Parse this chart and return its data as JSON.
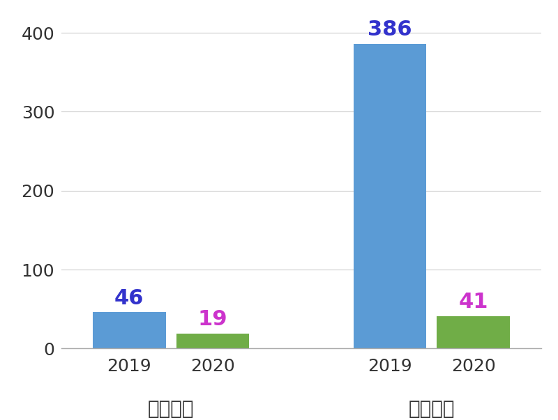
{
  "groups": [
    {
      "label": "マラリア",
      "bars": [
        {
          "year": "2019",
          "value": 46,
          "color": "#5b9bd5",
          "label_color": "#3333cc"
        },
        {
          "year": "2020",
          "value": 19,
          "color": "#70ad47",
          "label_color": "#cc33cc"
        }
      ]
    },
    {
      "label": "デング熱",
      "bars": [
        {
          "year": "2019",
          "value": 386,
          "color": "#5b9bd5",
          "label_color": "#3333cc"
        },
        {
          "year": "2020",
          "value": 41,
          "color": "#70ad47",
          "label_color": "#cc33cc"
        }
      ]
    }
  ],
  "ylim": [
    0,
    415
  ],
  "yticks": [
    0,
    100,
    200,
    300,
    400
  ],
  "background_color": "#ffffff",
  "bar_width": 0.7,
  "tick_fontsize": 18,
  "group_label_fontsize": 20,
  "value_label_fontsize": 22
}
